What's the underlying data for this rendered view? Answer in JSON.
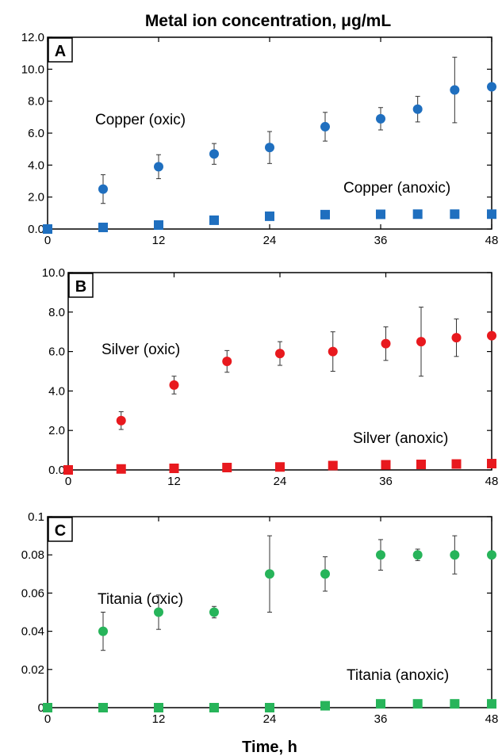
{
  "figure": {
    "title": "Metal ion concentration, μg/mL",
    "xlabel": "Time, h"
  },
  "chart_data": [
    {
      "type": "scatter",
      "panel_label": "A",
      "xlim": [
        0,
        48
      ],
      "ylim": [
        0,
        12
      ],
      "x_ticks": [
        0,
        12,
        24,
        36,
        48
      ],
      "x_tick_labels": [
        "0",
        "12",
        "24",
        "36",
        "48"
      ],
      "y_ticks": [
        0,
        2,
        4,
        6,
        8,
        10,
        12
      ],
      "y_tick_labels": [
        "0.0",
        "2.0",
        "4.0",
        "6.0",
        "8.0",
        "10.0",
        "12.0"
      ],
      "grid": false,
      "series": [
        {
          "name": "Copper (oxic)",
          "marker": "circle",
          "color": "#1f6fbf",
          "points": [
            {
              "x": 6,
              "y": 2.5,
              "err": 0.9
            },
            {
              "x": 12,
              "y": 3.9,
              "err": 0.75
            },
            {
              "x": 18,
              "y": 4.7,
              "err": 0.65
            },
            {
              "x": 24,
              "y": 5.1,
              "err": 1.0
            },
            {
              "x": 30,
              "y": 6.4,
              "err": 0.9
            },
            {
              "x": 36,
              "y": 6.9,
              "err": 0.7
            },
            {
              "x": 40,
              "y": 7.5,
              "err": 0.8
            },
            {
              "x": 44,
              "y": 8.7,
              "err": 2.05
            },
            {
              "x": 48,
              "y": 8.9,
              "err": 0
            }
          ]
        },
        {
          "name": "Copper (anoxic)",
          "marker": "square",
          "color": "#1f6fbf",
          "points": [
            {
              "x": 0,
              "y": 0
            },
            {
              "x": 6,
              "y": 0.1
            },
            {
              "x": 12,
              "y": 0.25
            },
            {
              "x": 18,
              "y": 0.55
            },
            {
              "x": 24,
              "y": 0.8
            },
            {
              "x": 30,
              "y": 0.9
            },
            {
              "x": 36,
              "y": 0.92
            },
            {
              "x": 40,
              "y": 0.93
            },
            {
              "x": 44,
              "y": 0.93
            },
            {
              "x": 48,
              "y": 0.93
            }
          ]
        }
      ]
    },
    {
      "type": "scatter",
      "panel_label": "B",
      "xlim": [
        0,
        48
      ],
      "ylim": [
        0,
        10
      ],
      "x_ticks": [
        0,
        12,
        24,
        36,
        48
      ],
      "x_tick_labels": [
        "0",
        "12",
        "24",
        "36",
        "48"
      ],
      "y_ticks": [
        0,
        2,
        4,
        6,
        8,
        10
      ],
      "y_tick_labels": [
        "0.0",
        "2.0",
        "4.0",
        "6.0",
        "8.0",
        "10.0"
      ],
      "grid": false,
      "series": [
        {
          "name": "Silver (oxic)",
          "marker": "circle",
          "color": "#e8191e",
          "points": [
            {
              "x": 6,
              "y": 2.5,
              "err": 0.45
            },
            {
              "x": 12,
              "y": 4.3,
              "err": 0.45
            },
            {
              "x": 18,
              "y": 5.5,
              "err": 0.55
            },
            {
              "x": 24,
              "y": 5.9,
              "err": 0.6
            },
            {
              "x": 30,
              "y": 6.0,
              "err": 1.0
            },
            {
              "x": 36,
              "y": 6.4,
              "err": 0.85
            },
            {
              "x": 40,
              "y": 6.5,
              "err": 1.75
            },
            {
              "x": 44,
              "y": 6.7,
              "err": 0.95
            },
            {
              "x": 48,
              "y": 6.8,
              "err": 0
            }
          ]
        },
        {
          "name": "Silver (anoxic)",
          "marker": "square",
          "color": "#e8191e",
          "points": [
            {
              "x": 0,
              "y": 0
            },
            {
              "x": 6,
              "y": 0.05
            },
            {
              "x": 12,
              "y": 0.08
            },
            {
              "x": 18,
              "y": 0.12
            },
            {
              "x": 24,
              "y": 0.15
            },
            {
              "x": 30,
              "y": 0.22
            },
            {
              "x": 36,
              "y": 0.26
            },
            {
              "x": 40,
              "y": 0.28
            },
            {
              "x": 44,
              "y": 0.3
            },
            {
              "x": 48,
              "y": 0.32
            }
          ]
        }
      ]
    },
    {
      "type": "scatter",
      "panel_label": "C",
      "xlim": [
        0,
        48
      ],
      "ylim": [
        0,
        0.1
      ],
      "x_ticks": [
        0,
        12,
        24,
        36,
        48
      ],
      "x_tick_labels": [
        "0",
        "12",
        "24",
        "36",
        "48"
      ],
      "y_ticks": [
        0,
        0.02,
        0.04,
        0.06,
        0.08,
        0.1
      ],
      "y_tick_labels": [
        "0",
        "0.02",
        "0.04",
        "0.06",
        "0.08",
        "0.1"
      ],
      "grid": false,
      "series": [
        {
          "name": "Titania (oxic)",
          "marker": "circle",
          "color": "#27b45a",
          "points": [
            {
              "x": 6,
              "y": 0.04,
              "err": 0.01
            },
            {
              "x": 12,
              "y": 0.05,
              "err": 0.009
            },
            {
              "x": 18,
              "y": 0.05,
              "err": 0.003
            },
            {
              "x": 24,
              "y": 0.07,
              "err": 0.02
            },
            {
              "x": 30,
              "y": 0.07,
              "err": 0.009
            },
            {
              "x": 36,
              "y": 0.08,
              "err": 0.008
            },
            {
              "x": 40,
              "y": 0.08,
              "err": 0.003
            },
            {
              "x": 44,
              "y": 0.08,
              "err": 0.01
            },
            {
              "x": 48,
              "y": 0.08,
              "err": 0
            }
          ]
        },
        {
          "name": "Titania (anoxic)",
          "marker": "square",
          "color": "#27b45a",
          "points": [
            {
              "x": 0,
              "y": 0
            },
            {
              "x": 6,
              "y": 0
            },
            {
              "x": 12,
              "y": 0
            },
            {
              "x": 18,
              "y": 0
            },
            {
              "x": 24,
              "y": 0
            },
            {
              "x": 30,
              "y": 0.001
            },
            {
              "x": 36,
              "y": 0.002
            },
            {
              "x": 40,
              "y": 0.002
            },
            {
              "x": 44,
              "y": 0.002
            },
            {
              "x": 48,
              "y": 0.002
            }
          ]
        }
      ]
    }
  ]
}
